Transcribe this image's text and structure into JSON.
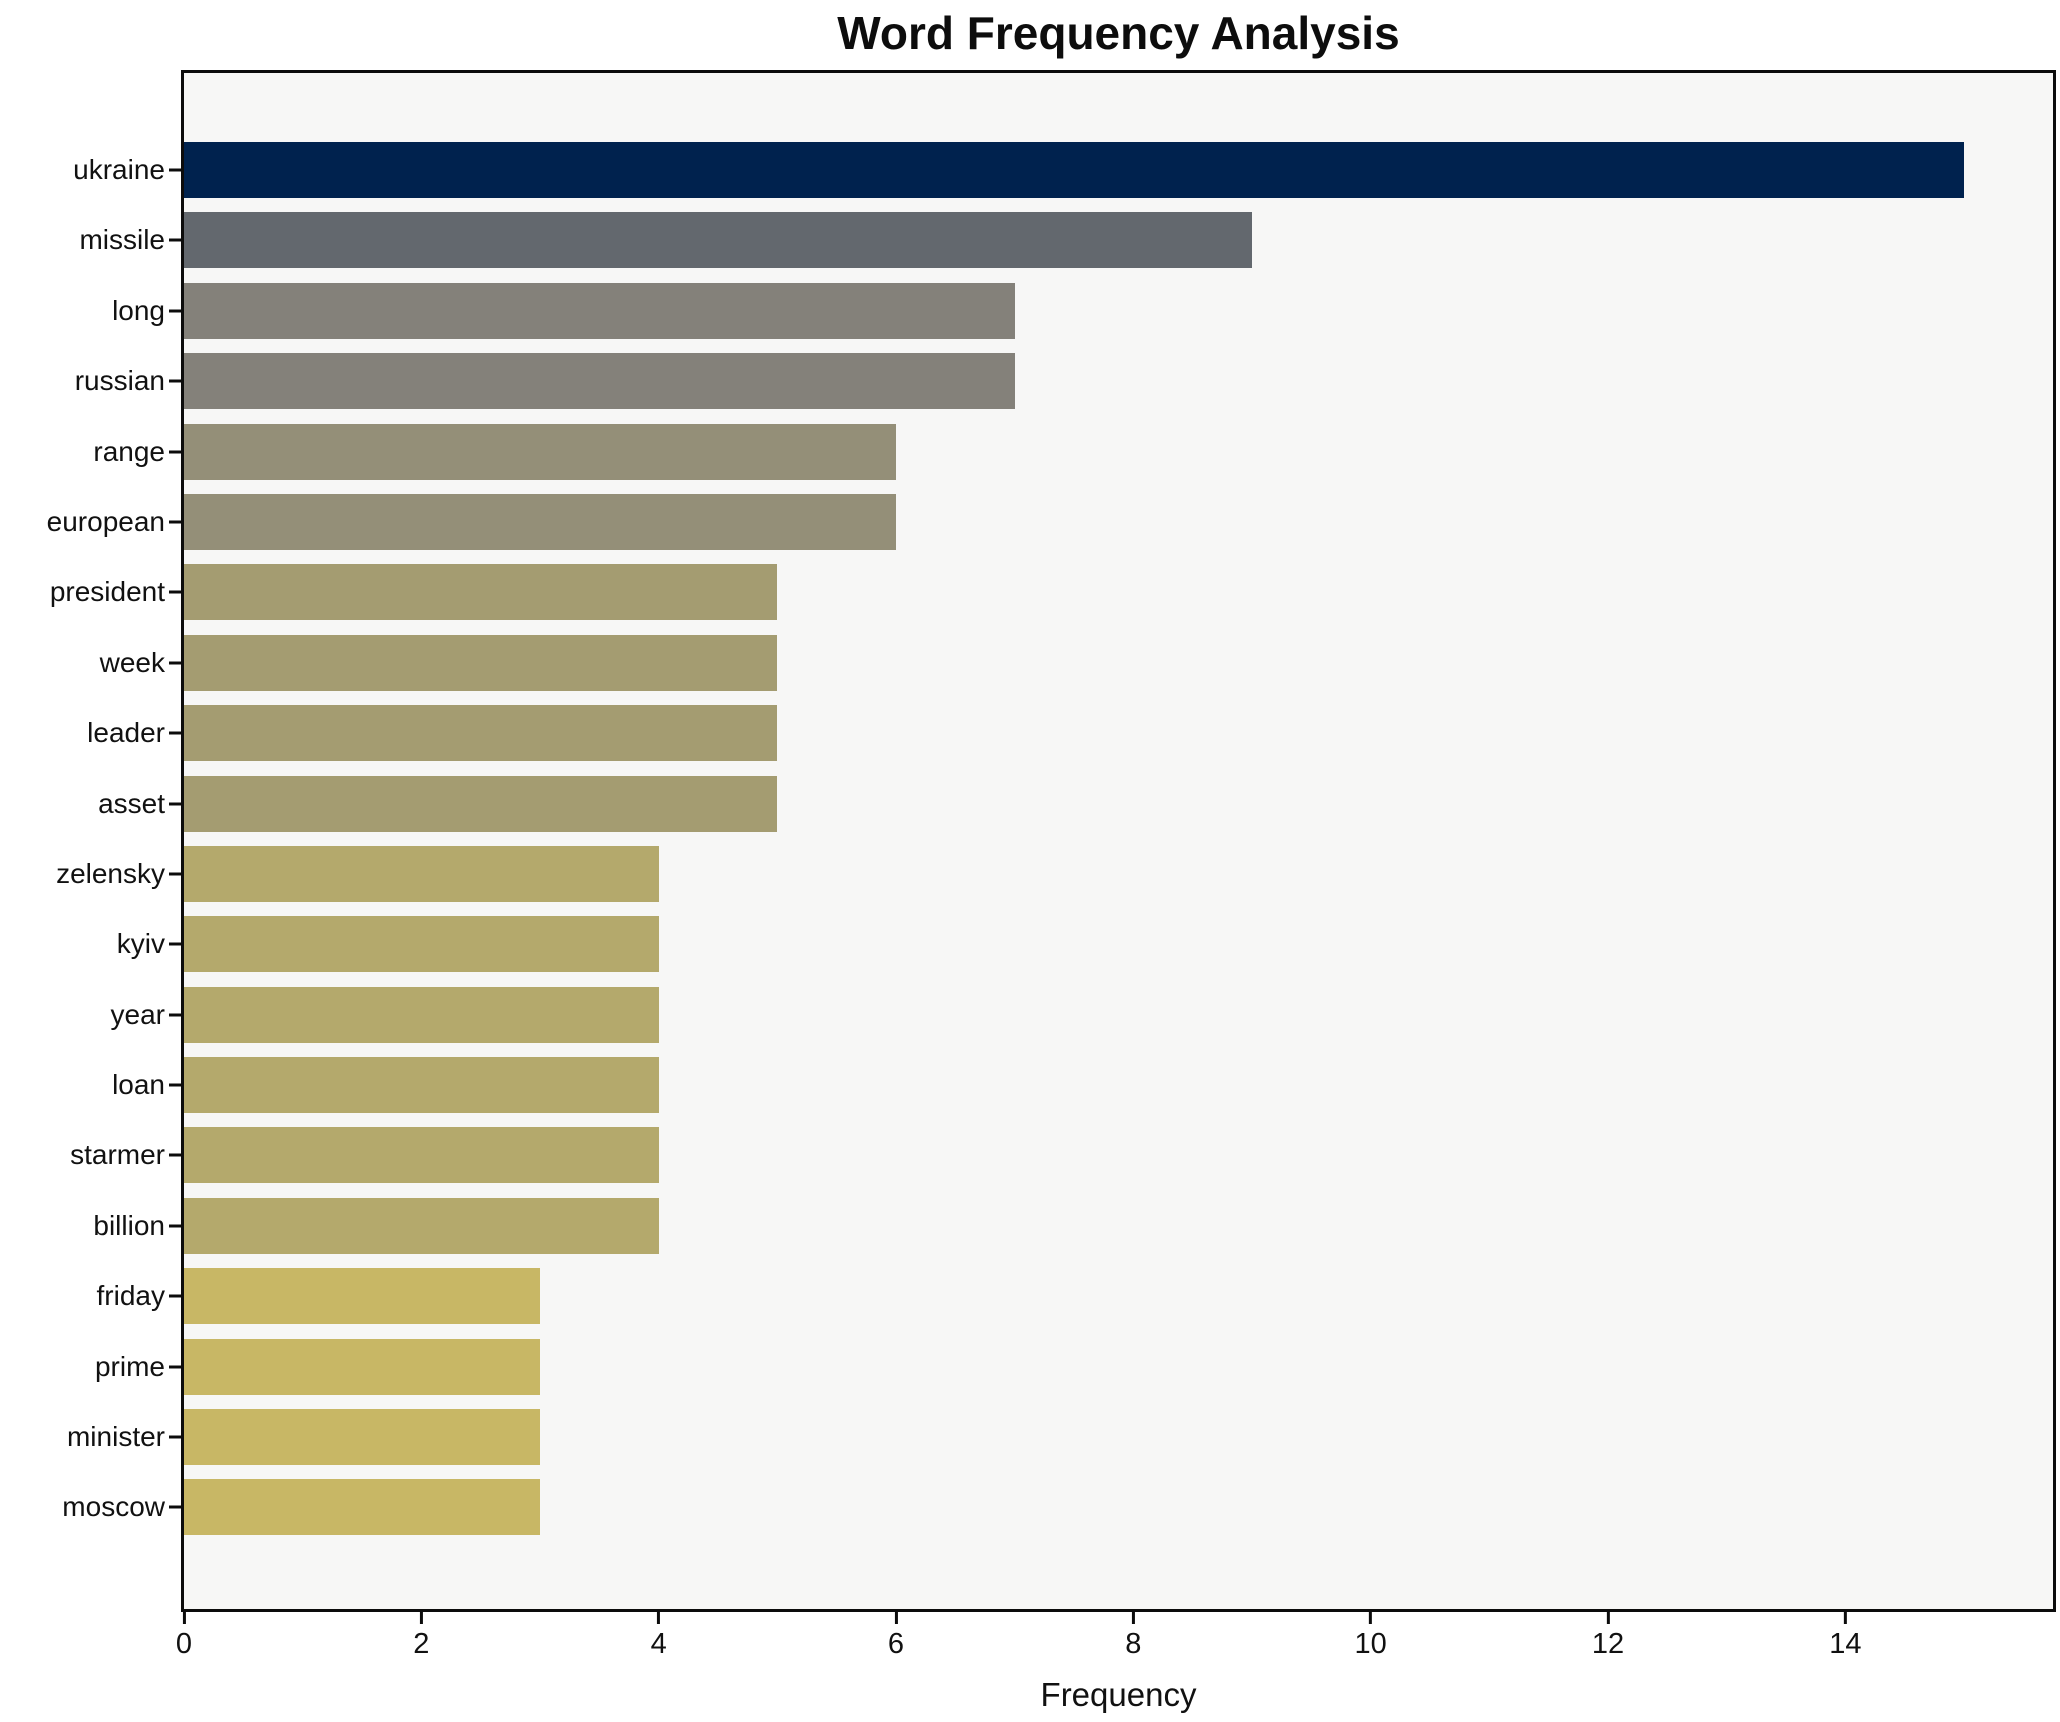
{
  "chart_data": {
    "type": "bar",
    "orientation": "horizontal",
    "title": "Word Frequency Analysis",
    "xlabel": "Frequency",
    "ylabel": "",
    "categories": [
      "ukraine",
      "missile",
      "long",
      "russian",
      "range",
      "european",
      "president",
      "week",
      "leader",
      "asset",
      "zelensky",
      "kyiv",
      "year",
      "loan",
      "starmer",
      "billion",
      "friday",
      "prime",
      "minister",
      "moscow"
    ],
    "values": [
      15,
      9,
      7,
      7,
      6,
      6,
      5,
      5,
      5,
      5,
      4,
      4,
      4,
      4,
      4,
      4,
      3,
      3,
      3,
      3
    ],
    "bar_colors": [
      "#00224e",
      "#63686e",
      "#84817a",
      "#84817a",
      "#948f78",
      "#948f78",
      "#a49c71",
      "#a49c71",
      "#a49c71",
      "#a49c71",
      "#b4a96c",
      "#b4a96c",
      "#b4a96c",
      "#b4a96c",
      "#b4a96c",
      "#b4a96c",
      "#c8b765",
      "#c8b765",
      "#c8b765",
      "#c8b765"
    ],
    "xlim": [
      0,
      15.75
    ],
    "xticks": [
      0,
      2,
      4,
      6,
      8,
      10,
      12,
      14
    ],
    "grid": false,
    "legend": "none",
    "plot_background": "#f7f7f6",
    "figure_background": "#ffffff",
    "spine_color": "#0c0c0c"
  }
}
